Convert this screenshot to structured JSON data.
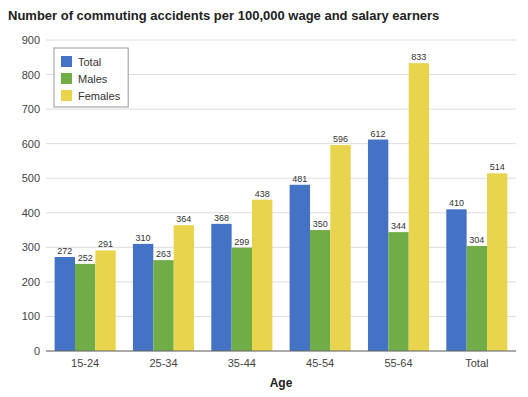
{
  "chart_data": {
    "type": "bar",
    "title": "Number of commuting accidents per 100,000 wage and salary earners",
    "xlabel": "Age",
    "categories": [
      "15-24",
      "25-34",
      "35-44",
      "45-54",
      "55-64",
      "Total"
    ],
    "series": [
      {
        "name": "Total",
        "color": "#4472C4",
        "values": [
          272,
          310,
          368,
          481,
          612,
          410
        ]
      },
      {
        "name": "Males",
        "color": "#70AD47",
        "values": [
          252,
          263,
          299,
          350,
          344,
          304
        ]
      },
      {
        "name": "Females",
        "color": "#E8D44D",
        "values": [
          291,
          364,
          438,
          596,
          833,
          514
        ]
      }
    ],
    "ylim": [
      0,
      900
    ],
    "yticks": [
      0,
      100,
      200,
      300,
      400,
      500,
      600,
      700,
      800,
      900
    ],
    "grid": true,
    "legend": "upper left",
    "data_labels": true
  }
}
